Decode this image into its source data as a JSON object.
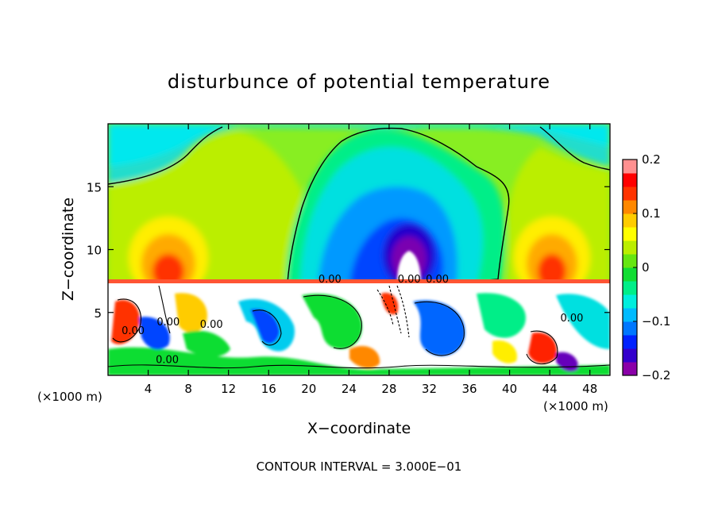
{
  "chart_data": {
    "type": "heatmap",
    "title": "disturbunce of potential temperature",
    "xlabel": "X−coordinate",
    "ylabel": "Z−coordinate",
    "x_unit": "(×1000 m)",
    "x_unit_right": "(×1000 m)",
    "xlim": [
      0,
      50
    ],
    "ylim": [
      0,
      20
    ],
    "x_ticks": [
      4,
      8,
      12,
      16,
      20,
      24,
      28,
      32,
      36,
      40,
      44,
      48
    ],
    "y_ticks": [
      5,
      10,
      15
    ],
    "contour_interval_text": "CONTOUR INTERVAL = 3.000E−01",
    "colorbar": {
      "range": [
        -0.2,
        0.2
      ],
      "ticks": [
        {
          "value": 0.2,
          "label": "0.2"
        },
        {
          "value": 0.1,
          "label": "0.1"
        },
        {
          "value": 0.0,
          "label": "0"
        },
        {
          "value": -0.1,
          "label": "−0.1"
        },
        {
          "value": -0.2,
          "label": "−0.2"
        }
      ],
      "colors": [
        "#8a00a8",
        "#3300cc",
        "#0022ff",
        "#0077ff",
        "#00bbff",
        "#00eedd",
        "#00ee88",
        "#11dd33",
        "#66e611",
        "#bbee00",
        "#ffff00",
        "#ffcc00",
        "#ff8800",
        "#ff3300",
        "#ff0000",
        "#ff9090"
      ]
    },
    "contour_labels": [
      {
        "x": 2.5,
        "y": 3.6,
        "text": "0.00"
      },
      {
        "x": 6.0,
        "y": 4.3,
        "text": "0.00"
      },
      {
        "x": 5.9,
        "y": 1.3,
        "text": "0.00"
      },
      {
        "x": 10.3,
        "y": 4.1,
        "text": "0.00"
      },
      {
        "x": 22.1,
        "y": 7.7,
        "text": "0.00"
      },
      {
        "x": 30.0,
        "y": 7.7,
        "text": "0.00"
      },
      {
        "x": 32.8,
        "y": 7.7,
        "text": "0.00"
      },
      {
        "x": 46.2,
        "y": 4.6,
        "text": "0.00"
      }
    ],
    "lower_layer": {
      "z_top": 7.3,
      "pattern": "turbulent mixed layer with nested contours"
    },
    "upper_field": [
      {
        "name": "cold bubble core",
        "x": 30,
        "z": 9.5,
        "value": -0.2
      },
      {
        "name": "cold plume",
        "x": 28,
        "z": 13,
        "value": -0.1
      },
      {
        "name": "warm lobe left",
        "x": 6,
        "z": 9.5,
        "value": 0.12
      },
      {
        "name": "warm lobe right",
        "x": 44,
        "z": 9.5,
        "value": 0.12
      }
    ]
  }
}
